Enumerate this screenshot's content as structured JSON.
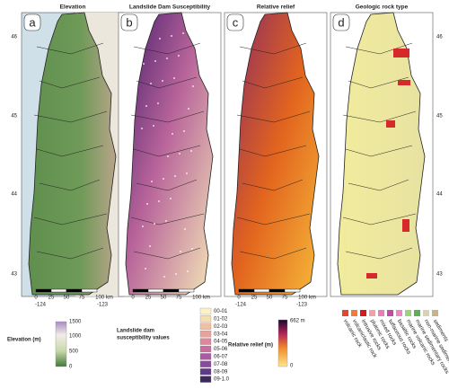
{
  "panels": [
    {
      "letter": "a",
      "title": "Elevation"
    },
    {
      "letter": "b",
      "title": "Landslide Dam Susceptibility"
    },
    {
      "letter": "c",
      "title": "Relative relief"
    },
    {
      "letter": "d",
      "title": "Geologic rock type"
    }
  ],
  "latitude_labels": [
    "46",
    "45",
    "44",
    "43"
  ],
  "longitude_labels": [
    "-124",
    "-123"
  ],
  "scale_bar": [
    "0",
    "25",
    "50",
    "75",
    "100 km"
  ],
  "elevation_legend": {
    "title": "Elevation (m)",
    "labels": [
      "1500",
      "1000",
      "500",
      "0"
    ]
  },
  "susceptibility_legend": {
    "title_lines": [
      "Landslide  dam",
      "susceptibility values"
    ],
    "classes": [
      "00-01",
      "01-02",
      "02-03",
      "03-04",
      "04-05",
      "05-06",
      "06-07",
      "07-08",
      "08-09",
      "09-1.0"
    ]
  },
  "relief_legend": {
    "title": "Relative relief (m)",
    "max_label": "662 m",
    "min_label": "0"
  },
  "rock_legend": {
    "classes": [
      "volcanic rock",
      "volcaniclastic rock",
      "intrusive rocks",
      "plutonic rocks",
      "mixed rocks",
      "tuffaceous rocks",
      "basaltic rocks",
      "marine volcanic rocks",
      "marine sedimentary rocks",
      "non-marine sedimentary rocks",
      "sediments"
    ]
  }
}
